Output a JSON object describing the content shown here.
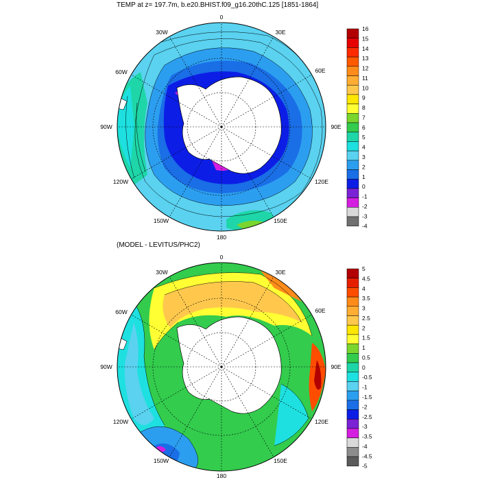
{
  "panels": [
    {
      "title": "TEMP at z= 197.7m, b.e20.BHIST.f09_g16.20thC.125 [1851-1864]",
      "colorbar": {
        "labels": [
          "16",
          "15",
          "14",
          "13",
          "12",
          "11",
          "10",
          "9",
          "8",
          "7",
          "6",
          "5",
          "4",
          "3",
          "2",
          "1",
          "0",
          "-1",
          "-2",
          "-3",
          "-4"
        ],
        "colors": [
          "#b20000",
          "#e60000",
          "#ff2a00",
          "#ff5a00",
          "#ff8c1a",
          "#ffad33",
          "#ffc84d",
          "#ffe600",
          "#ffff33",
          "#7ad62e",
          "#33cc4d",
          "#1ed6a8",
          "#1ee0e0",
          "#5ad2f0",
          "#2c9ef0",
          "#1a6ee6",
          "#0c1ee6",
          "#7a22d6",
          "#d41ee0",
          "#d9d9d9",
          "#707070"
        ]
      },
      "map_labels": {
        "lon_0": "0",
        "lon_30e": "30E",
        "lon_60e": "60E",
        "lon_90e": "90E",
        "lon_120e": "120E",
        "lon_150e": "150E",
        "lon_180": "180",
        "lon_150w": "150W",
        "lon_120w": "120W",
        "lon_90w": "90W",
        "lon_60w": "60W",
        "lon_30w": "30W"
      }
    },
    {
      "title": "(MODEL - LEVITUS/PHC2)",
      "colorbar": {
        "labels": [
          "5",
          "4.5",
          "4",
          "3.5",
          "3",
          "2.5",
          "2",
          "1.5",
          "1",
          "0.5",
          "0",
          "-0.5",
          "-1",
          "-1.5",
          "-2",
          "-2.5",
          "-3",
          "-3.5",
          "-4",
          "-4.5",
          "-5"
        ],
        "colors": [
          "#b20000",
          "#e61e00",
          "#ff4d00",
          "#ff8c1a",
          "#ffad33",
          "#ffc84d",
          "#ffe600",
          "#ffff33",
          "#7ad62e",
          "#33cc4d",
          "#1ed6a8",
          "#1ee0e0",
          "#5ad2f0",
          "#2c9ef0",
          "#1a6ee6",
          "#0c1ee6",
          "#7a22d6",
          "#d41ee0",
          "#d9d9d9",
          "#8c8c8c",
          "#5a5a5a"
        ]
      },
      "map_labels": {
        "lon_0": "0",
        "lon_30e": "30E",
        "lon_60e": "60E",
        "lon_90e": "90E",
        "lon_120e": "120E",
        "lon_150e": "150E",
        "lon_180": "180",
        "lon_150w": "150W",
        "lon_120w": "120W",
        "lon_90w": "90W",
        "lon_60w": "60W",
        "lon_30w": "30W"
      }
    }
  ]
}
